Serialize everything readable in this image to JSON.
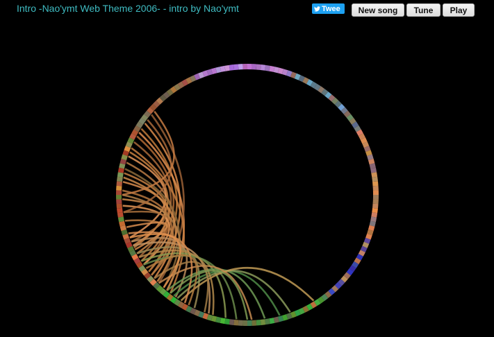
{
  "header": {
    "song_title": "Intro -Nao'ymt Web Theme 2006- - intro by Nao'ymt",
    "tweet_label": "Twee",
    "new_song_label": "New song",
    "tune_label": "Tune",
    "play_label": "Play"
  },
  "colors": {
    "title_text": "#3fbcc2",
    "tweet_bg": "#1da1f2",
    "background": "#000000"
  },
  "icons": {
    "tweet": "twitter-bird-icon"
  }
}
